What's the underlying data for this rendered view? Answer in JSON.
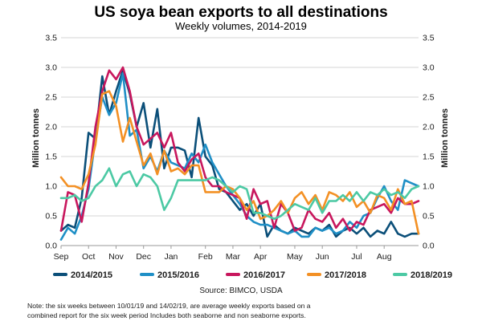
{
  "chart_data": {
    "type": "line",
    "title": "US soya bean exports to all destinations",
    "subtitle": "Weekly volumes, 2014-2019",
    "ylabel_left": "Million tonnes",
    "ylabel_right": "Million tonnes",
    "xlabel": "",
    "ylim": [
      0,
      3.5
    ],
    "yticks": [
      "0.0",
      "0.5",
      "1.0",
      "1.5",
      "2.0",
      "2.5",
      "3.0",
      "3.5"
    ],
    "xlim": [
      1,
      53
    ],
    "x_tick_labels": [
      "Sep",
      "Oct",
      "Nov",
      "Dec",
      "Jan",
      "Feb",
      "Mar",
      "Apr",
      "May",
      "Jun",
      "Jul",
      "Aug"
    ],
    "x_tick_weeks": [
      1,
      5,
      9,
      13,
      17,
      22,
      26,
      30,
      35,
      39,
      44,
      48
    ],
    "grid": "horizontal",
    "legend_position": "bottom",
    "source": "Source: BIMCO, USDA",
    "note_lines": [
      "Note: the six weeks between 10/01/19 and 14/02/19, are average weekly exports based on a",
      "combined report for the six week period Includes both seaborne and non seaborne exports."
    ],
    "series": [
      {
        "name": "2014/2015",
        "color": "#0b4f79",
        "values": [
          0.25,
          0.35,
          0.3,
          0.8,
          1.9,
          1.8,
          2.85,
          2.2,
          2.6,
          2.95,
          2.55,
          2.0,
          2.4,
          1.65,
          2.3,
          1.3,
          1.65,
          1.65,
          1.6,
          1.15,
          2.15,
          1.5,
          1.35,
          0.95,
          0.9,
          0.75,
          0.6,
          0.7,
          0.5,
          0.7,
          0.15,
          0.35,
          0.25,
          0.2,
          0.3,
          0.25,
          0.2,
          0.3,
          0.25,
          0.35,
          0.15,
          0.25,
          0.3,
          0.2,
          0.3,
          0.15,
          0.25,
          0.2,
          0.4,
          0.2,
          0.15,
          0.2,
          0.2
        ]
      },
      {
        "name": "2015/2016",
        "color": "#1f8fc6",
        "values": [
          0.1,
          0.3,
          0.2,
          0.5,
          0.95,
          1.8,
          2.5,
          2.2,
          2.4,
          2.9,
          1.85,
          1.95,
          1.3,
          1.5,
          1.25,
          1.6,
          1.4,
          1.35,
          1.3,
          1.55,
          1.4,
          1.7,
          1.4,
          1.2,
          1.0,
          0.85,
          0.7,
          0.5,
          0.4,
          0.35,
          0.35,
          0.3,
          0.25,
          0.2,
          0.25,
          0.15,
          0.15,
          0.3,
          0.25,
          0.3,
          0.2,
          0.25,
          0.4,
          0.3,
          0.5,
          0.55,
          0.8,
          1.0,
          0.75,
          0.6,
          1.1,
          1.05,
          1.0
        ]
      },
      {
        "name": "2016/2017",
        "color": "#c8175d",
        "values": [
          0.25,
          0.9,
          0.85,
          0.4,
          1.05,
          2.0,
          2.6,
          2.95,
          2.8,
          3.0,
          2.6,
          2.0,
          1.7,
          1.8,
          1.9,
          1.65,
          1.9,
          1.4,
          1.25,
          1.45,
          1.55,
          1.15,
          1.0,
          1.0,
          0.9,
          0.85,
          0.8,
          0.45,
          0.95,
          0.7,
          0.75,
          0.3,
          0.7,
          0.55,
          0.25,
          0.3,
          0.6,
          0.45,
          0.4,
          0.55,
          0.3,
          0.45,
          0.25,
          0.4,
          0.35,
          0.6,
          0.65,
          0.7,
          0.55,
          0.8,
          0.7,
          0.7,
          0.75
        ]
      },
      {
        "name": "2017/2018",
        "color": "#f39024",
        "values": [
          1.15,
          1.0,
          1.0,
          0.95,
          1.2,
          1.7,
          2.55,
          2.6,
          2.35,
          1.75,
          2.15,
          1.75,
          1.35,
          1.55,
          1.2,
          1.6,
          1.25,
          1.3,
          1.2,
          1.35,
          1.35,
          0.9,
          0.9,
          0.9,
          1.0,
          0.95,
          0.8,
          0.6,
          0.75,
          0.45,
          0.5,
          0.6,
          0.75,
          0.55,
          0.8,
          0.9,
          0.7,
          0.85,
          0.6,
          0.9,
          0.85,
          0.75,
          0.9,
          0.65,
          0.75,
          0.55,
          0.85,
          0.8,
          0.6,
          0.95,
          0.7,
          0.75,
          0.2
        ]
      },
      {
        "name": "2018/2019",
        "color": "#4cc9a4",
        "values": [
          0.8,
          0.8,
          0.85,
          0.75,
          0.8,
          1.0,
          1.1,
          1.3,
          1.0,
          1.2,
          1.25,
          1.0,
          1.2,
          1.15,
          1.0,
          0.6,
          0.8,
          1.1,
          1.1,
          1.1,
          1.1,
          1.1,
          1.15,
          1.1,
          1.0,
          0.9,
          1.0,
          0.95,
          0.55,
          0.55,
          0.5,
          0.45,
          0.5,
          0.6,
          0.7,
          0.65,
          0.6,
          0.8,
          0.55,
          0.75,
          0.75,
          0.85,
          0.75,
          0.9,
          0.75,
          0.9,
          0.85,
          0.95,
          0.85,
          0.9,
          0.8,
          0.95,
          1.0
        ]
      }
    ]
  }
}
